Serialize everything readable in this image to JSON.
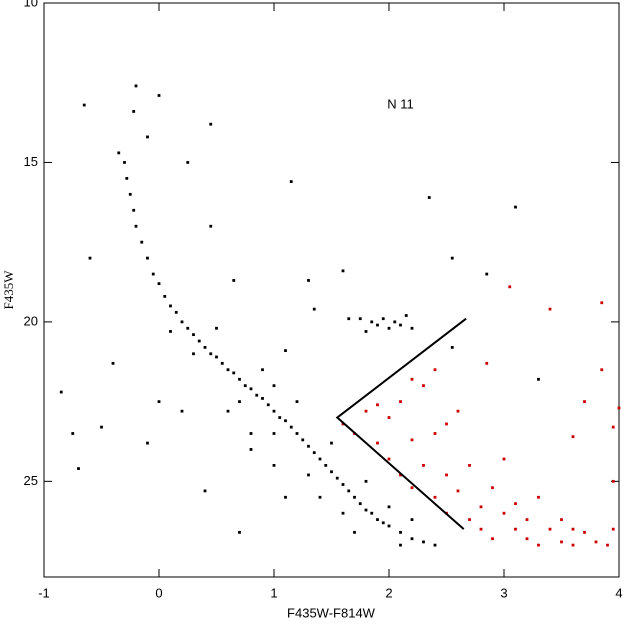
{
  "chart_data": {
    "type": "scatter",
    "xlabel": "F435W-F814W",
    "ylabel": "F435W",
    "annotation": "N 11",
    "annotation_x": 2.1,
    "annotation_y": 13.2,
    "xlim": [
      -1,
      4
    ],
    "ylim": [
      28,
      10
    ],
    "y_inverted": true,
    "xticks": [
      -1,
      0,
      1,
      2,
      3,
      4
    ],
    "yticks": [
      10,
      15,
      20,
      25
    ],
    "series": [
      {
        "color": "#000000",
        "x": [
          -0.35,
          -0.3,
          -0.28,
          -0.25,
          -0.22,
          -0.2,
          -0.15,
          -0.1,
          -0.05,
          0.0,
          0.05,
          0.1,
          0.15,
          0.2,
          0.25,
          0.3,
          0.35,
          0.4,
          0.45,
          0.5,
          0.55,
          0.6,
          0.65,
          0.7,
          0.75,
          0.8,
          0.85,
          0.9,
          0.95,
          1.0,
          1.05,
          1.1,
          1.15,
          1.2,
          1.25,
          1.3,
          1.35,
          1.4,
          1.45,
          1.5,
          1.55,
          1.6,
          1.65,
          1.7,
          1.75,
          1.8,
          1.85,
          1.9,
          1.95,
          2.0,
          2.1,
          2.2,
          2.3,
          2.4,
          0.1,
          0.3,
          0.5,
          0.7,
          0.9,
          1.0,
          1.2,
          1.3,
          1.5,
          1.6,
          1.4,
          1.8,
          2.0,
          2.2,
          1.7,
          2.1,
          1.0,
          0.8,
          1.1,
          0.6,
          1.85,
          1.9,
          1.95,
          2.0,
          2.05,
          2.1,
          1.8,
          2.15,
          1.75,
          2.2,
          -0.2,
          -0.22,
          0.0,
          -0.65,
          0.45,
          0.25,
          -0.1,
          1.15,
          0.45,
          0.65,
          1.3,
          1.6,
          1.65,
          1.35,
          2.55,
          2.35,
          3.1,
          2.85,
          -0.85,
          -0.75,
          -0.7,
          -0.5,
          0.0,
          0.4,
          0.7,
          0.8,
          1.0,
          1.1,
          2.55,
          3.3,
          -0.4,
          -0.6,
          0.2,
          -0.1
        ],
        "y": [
          14.7,
          15.0,
          15.5,
          16.0,
          16.5,
          17.0,
          17.5,
          18.0,
          18.5,
          18.8,
          19.2,
          19.5,
          19.7,
          20.0,
          20.2,
          20.4,
          20.6,
          20.8,
          21.0,
          21.1,
          21.3,
          21.5,
          21.6,
          21.8,
          22.0,
          22.1,
          22.3,
          22.4,
          22.6,
          22.8,
          23.0,
          23.1,
          23.3,
          23.5,
          23.7,
          23.9,
          24.1,
          24.3,
          24.5,
          24.7,
          24.9,
          25.1,
          25.3,
          25.5,
          25.7,
          25.9,
          26.0,
          26.2,
          26.3,
          26.4,
          26.6,
          26.8,
          26.9,
          27.0,
          20.3,
          21.0,
          20.2,
          22.5,
          21.5,
          23.5,
          22.5,
          24.8,
          23.8,
          26.0,
          25.5,
          25.0,
          25.8,
          26.2,
          26.6,
          27.0,
          24.5,
          23.5,
          25.5,
          22.8,
          20.0,
          20.1,
          19.9,
          20.2,
          20.0,
          20.1,
          20.3,
          19.8,
          19.9,
          20.2,
          12.6,
          13.4,
          12.9,
          13.2,
          13.8,
          15.0,
          14.2,
          15.6,
          17.0,
          18.7,
          18.7,
          18.4,
          19.9,
          19.6,
          18.0,
          16.1,
          16.4,
          18.5,
          22.2,
          23.5,
          24.6,
          23.3,
          22.5,
          25.3,
          26.6,
          24.0,
          22.0,
          20.9,
          20.8,
          21.8,
          21.3,
          18.0,
          22.8,
          23.8
        ]
      },
      {
        "color": "#cc0000",
        "x": [
          1.6,
          1.7,
          1.8,
          1.9,
          2.0,
          2.0,
          2.1,
          2.1,
          2.2,
          2.2,
          2.3,
          2.3,
          2.4,
          2.4,
          2.5,
          2.5,
          2.6,
          2.6,
          2.7,
          2.7,
          2.8,
          2.8,
          2.9,
          2.9,
          3.0,
          3.0,
          3.1,
          3.1,
          3.2,
          3.2,
          3.3,
          3.3,
          3.4,
          3.5,
          3.5,
          3.6,
          3.6,
          3.7,
          3.8,
          3.9,
          3.95,
          3.95,
          3.85,
          3.7,
          3.4,
          3.85,
          3.05,
          2.4,
          2.85,
          3.6,
          3.95,
          4.0,
          2.2,
          1.9,
          2.5
        ],
        "y": [
          23.2,
          23.5,
          22.8,
          23.8,
          23.0,
          24.3,
          22.5,
          24.8,
          23.7,
          25.2,
          24.5,
          22.0,
          25.5,
          23.5,
          24.8,
          26.0,
          25.3,
          22.8,
          26.2,
          24.5,
          25.8,
          26.5,
          25.2,
          26.8,
          26.0,
          24.3,
          26.5,
          25.7,
          26.8,
          26.2,
          25.5,
          27.0,
          26.5,
          26.9,
          26.2,
          27.0,
          26.5,
          26.6,
          26.9,
          27.0,
          26.5,
          25.0,
          21.5,
          22.5,
          19.6,
          19.4,
          18.9,
          21.5,
          21.3,
          23.6,
          23.3,
          22.7,
          21.8,
          22.6,
          23.2
        ]
      }
    ],
    "lines": [
      {
        "color": "#000000",
        "x": [
          2.67,
          1.55,
          2.65
        ],
        "y": [
          19.9,
          23.0,
          26.5
        ]
      }
    ]
  }
}
